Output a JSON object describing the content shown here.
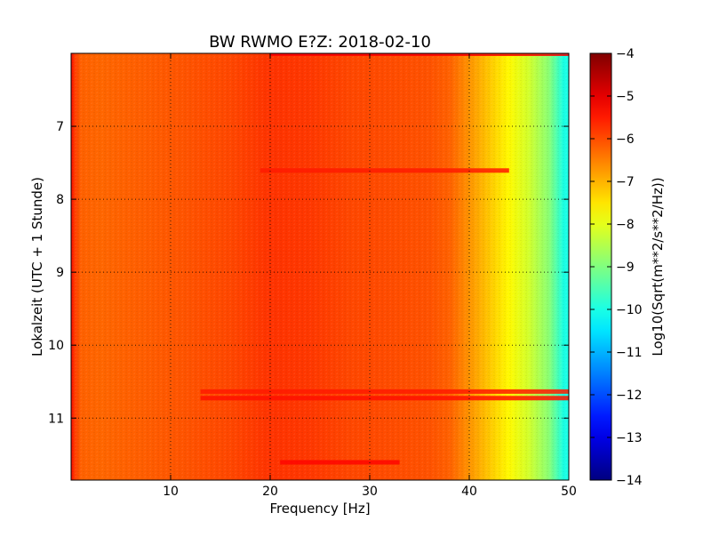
{
  "chart_data": {
    "type": "heatmap",
    "title": "BW RWMO E?Z: 2018-02-10",
    "xlabel": "Frequency [Hz]",
    "ylabel": "Lokalzeit (UTC + 1 Stunde)",
    "xlim": [
      0,
      50
    ],
    "ylim": [
      6.0,
      11.85
    ],
    "y_inverted": true,
    "x_ticks": [
      10,
      20,
      30,
      40,
      50
    ],
    "x_tick_labels": [
      "10",
      "20",
      "30",
      "40",
      "50"
    ],
    "y_ticks": [
      7,
      8,
      9,
      10,
      11
    ],
    "y_tick_labels": [
      "7",
      "8",
      "9",
      "10",
      "11"
    ],
    "grid": true,
    "colormap": "jet",
    "colorbar": {
      "label": "Log10(Sqrt(m**2/s**2/Hz))",
      "range": [
        -14,
        -4
      ],
      "ticks": [
        -4,
        -5,
        -6,
        -7,
        -8,
        -9,
        -10,
        -11,
        -12,
        -13,
        -14
      ],
      "tick_labels": [
        "−4",
        "−5",
        "−6",
        "−7",
        "−8",
        "−9",
        "−10",
        "−11",
        "−12",
        "−13",
        "−14"
      ]
    },
    "spectral_profile": {
      "frequency_hz": [
        0,
        0.3,
        1,
        3,
        8,
        12,
        16,
        20,
        24,
        28,
        32,
        36,
        38,
        40,
        42,
        44,
        46,
        48,
        49.5,
        50
      ],
      "log10_amplitude": [
        -5.3,
        -5.8,
        -6.2,
        -6.25,
        -6.15,
        -6.05,
        -5.95,
        -5.75,
        -5.8,
        -5.95,
        -6.0,
        -6.05,
        -6.2,
        -6.7,
        -7.2,
        -7.7,
        -8.2,
        -8.9,
        -10.0,
        -10.0
      ]
    },
    "strong_bands": [
      {
        "time": 6.0,
        "f_start": 20,
        "f_end": 50,
        "log10_amplitude": -5.2
      },
      {
        "time": 7.6,
        "f_start": 19,
        "f_end": 44,
        "log10_amplitude": -5.5
      },
      {
        "time": 10.63,
        "f_start": 13,
        "f_end": 50,
        "log10_amplitude": -5.5
      },
      {
        "time": 10.72,
        "f_start": 13,
        "f_end": 50,
        "log10_amplitude": -5.4
      },
      {
        "time": 11.6,
        "f_start": 21,
        "f_end": 33,
        "log10_amplitude": -5.3
      }
    ]
  }
}
